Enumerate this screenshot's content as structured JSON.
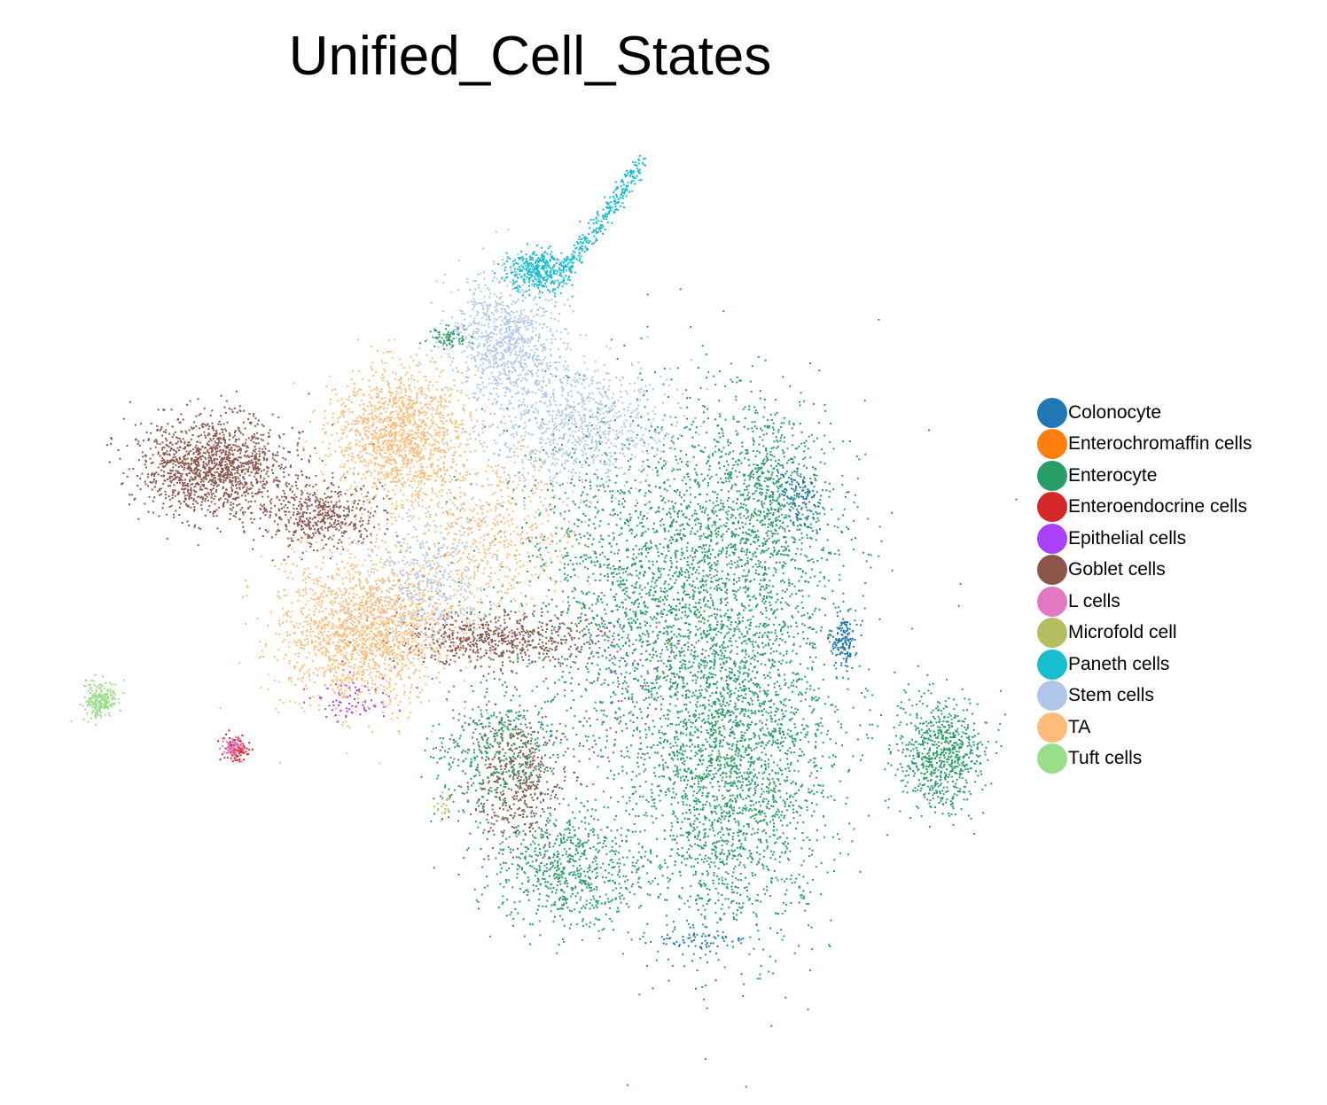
{
  "chart_data": {
    "type": "scatter",
    "title": "Unified_Cell_States",
    "xlabel": "",
    "ylabel": "",
    "grid": false,
    "axes_visible": false,
    "legend_position": "right",
    "categories": [
      {
        "name": "Colonocyte",
        "color": "#1f77b4"
      },
      {
        "name": "Enterochromaffin cells",
        "color": "#ff7f0e"
      },
      {
        "name": "Enterocyte",
        "color": "#279e68"
      },
      {
        "name": "Enteroendocrine cells",
        "color": "#d62728"
      },
      {
        "name": "Epithelial cells",
        "color": "#aa40fc"
      },
      {
        "name": "Goblet cells",
        "color": "#8c564b"
      },
      {
        "name": "L cells",
        "color": "#e377c2"
      },
      {
        "name": "Microfold cell",
        "color": "#b5bd61"
      },
      {
        "name": "Paneth cells",
        "color": "#17becf"
      },
      {
        "name": "Stem cells",
        "color": "#aec7e8"
      },
      {
        "name": "TA",
        "color": "#ffbb78"
      },
      {
        "name": "Tuft cells",
        "color": "#98df8a"
      }
    ]
  }
}
